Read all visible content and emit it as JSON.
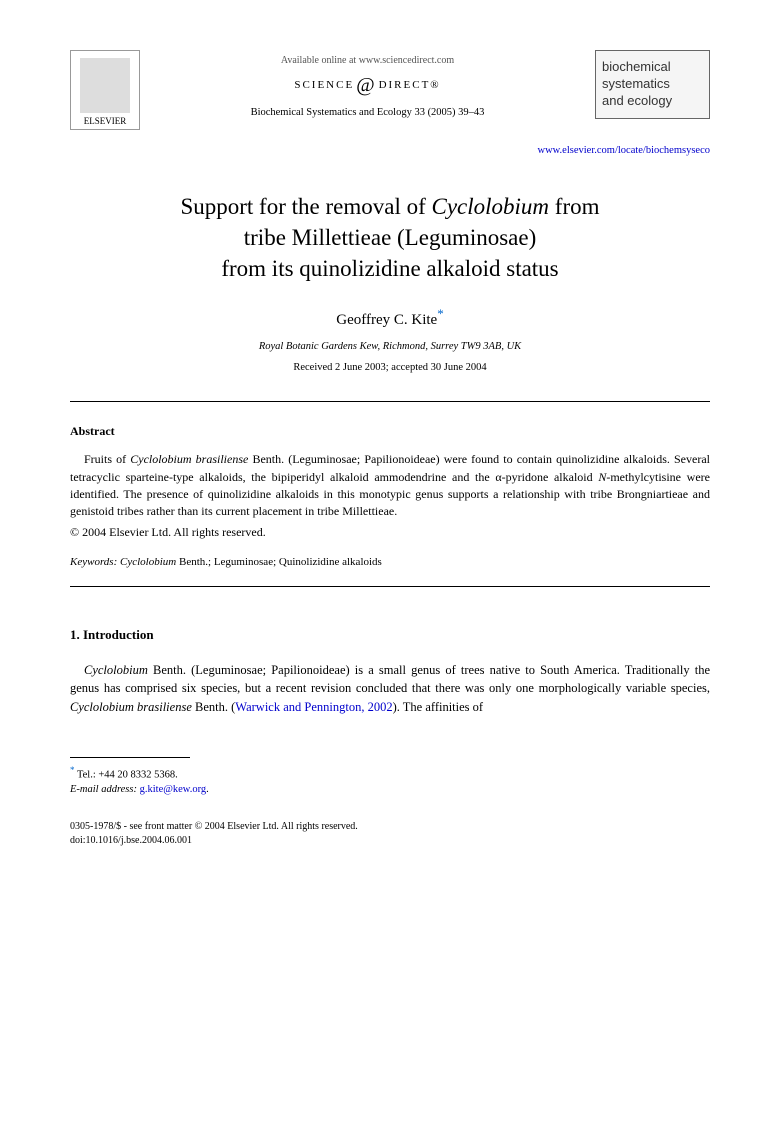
{
  "header": {
    "available_online": "Available online at www.sciencedirect.com",
    "science_label_left": "SCIENCE",
    "science_label_right": "DIRECT®",
    "journal_ref": "Biochemical Systematics and Ecology 33 (2005) 39–43",
    "journal_link": "www.elsevier.com/locate/biochemsyseco",
    "elsevier_label": "ELSEVIER",
    "journal_logo_line1": "biochemical",
    "journal_logo_line2": "systematics",
    "journal_logo_line3": "and ecology"
  },
  "title_line1": "Support for the removal of ",
  "title_italic1": "Cyclolobium",
  "title_line1b": " from",
  "title_line2": "tribe Millettieae (Leguminosae)",
  "title_line3": "from its quinolizidine alkaloid status",
  "author": "Geoffrey C. Kite",
  "affiliation": "Royal Botanic Gardens Kew, Richmond, Surrey TW9 3AB, UK",
  "dates": "Received 2 June 2003; accepted 30 June 2004",
  "abstract_heading": "Abstract",
  "abstract_lead": "Fruits of ",
  "abstract_italic1": "Cyclolobium brasiliense",
  "abstract_body": " Benth. (Leguminosae; Papilionoideae) were found to contain quinolizidine alkaloids. Several tetracyclic sparteine-type alkaloids, the bipiperidyl alkaloid ammodendrine and the α-pyridone alkaloid ",
  "abstract_italic2": "N",
  "abstract_body2": "-methylcytisine were identified. The presence of quinolizidine alkaloids in this monotypic genus supports a relationship with tribe Brongniartieae and genistoid tribes rather than its current placement in tribe Millettieae.",
  "copyright": "© 2004 Elsevier Ltd. All rights reserved.",
  "keywords_label": "Keywords: ",
  "keywords_italic": "Cyclolobium",
  "keywords_rest": " Benth.; Leguminosae; Quinolizidine alkaloids",
  "section1_heading": "1. Introduction",
  "intro_italic1": "Cyclolobium",
  "intro_body1": " Benth. (Leguminosae; Papilionoideae) is a small genus of trees native to South America. Traditionally the genus has comprised six species, but a recent revision concluded that there was only one morphologically variable species, ",
  "intro_italic2": "Cyclolobium brasiliense",
  "intro_body2": " Benth. (",
  "intro_ref": "Warwick and Pennington, 2002",
  "intro_body3": "). The affinities of",
  "footnote_tel_label": "Tel.: ",
  "footnote_tel": "+44 20 8332 5368.",
  "footnote_email_label": "E-mail address: ",
  "footnote_email": "g.kite@kew.org",
  "footnote_email_period": ".",
  "issn_line": "0305-1978/$ - see front matter © 2004 Elsevier Ltd. All rights reserved.",
  "doi_line": "doi:10.1016/j.bse.2004.06.001",
  "colors": {
    "link": "#0000cc",
    "text": "#000000",
    "background": "#ffffff"
  },
  "typography": {
    "title_fontsize": 23,
    "body_fontsize": 12.5,
    "abstract_fontsize": 12,
    "footnote_fontsize": 10.5
  }
}
